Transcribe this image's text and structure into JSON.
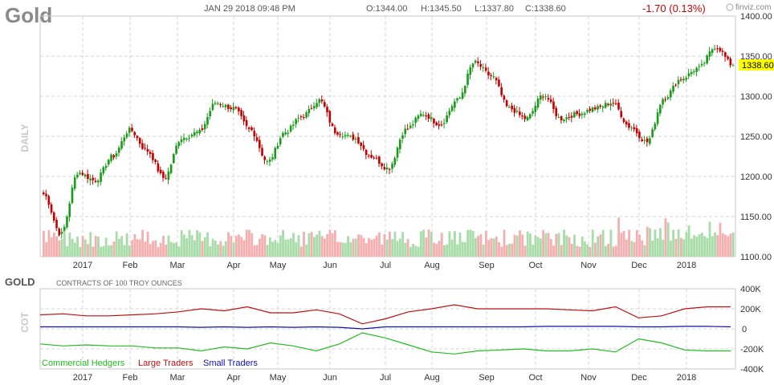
{
  "header": {
    "symbol": "Gold",
    "datetime": "JAN 29 2018 09:48 PM",
    "open": "O:1344.00",
    "high": "H:1345.50",
    "low": "L:1337.80",
    "close": "C:1338.60",
    "change": "-1.70 (0.13%)",
    "brand": "finviz.com",
    "change_color": "#cc0000"
  },
  "price_panel": {
    "label": "DAILY",
    "last_price": "1338.60",
    "last_price_bg": "#ffff00"
  },
  "cot_panel": {
    "symbol": "GOLD",
    "subtitle": "CONTRACTS OF 100 TROY OUNCES",
    "label": "COT"
  },
  "colors": {
    "up": "#1a9c1a",
    "down": "#c40000",
    "vol_up": "#a8dca8",
    "vol_down": "#f4b0b0",
    "grid": "#d4d4d4",
    "commercial": "#22bb22",
    "large": "#bb1111",
    "small": "#1111aa"
  },
  "chart_data": [
    {
      "type": "candlestick",
      "ylim": [
        1100,
        1400
      ],
      "yticks": [
        "1100.00",
        "1150.00",
        "1200.00",
        "1250.00",
        "1300.00",
        "1350.00",
        "1400.00"
      ],
      "x_labels": [
        "2017",
        "Feb",
        "Mar",
        "Apr",
        "May",
        "Jun",
        "Jul",
        "Aug",
        "Sep",
        "Oct",
        "Nov",
        "Dec",
        "2018"
      ],
      "anchors": [
        {
          "label": "start",
          "price": 1178
        },
        {
          "label": "early Jan",
          "price": 1128
        },
        {
          "label": "mid Jan",
          "price": 1205
        },
        {
          "label": "late Jan",
          "price": 1195
        },
        {
          "label": "Feb",
          "price": 1225
        },
        {
          "label": "late Feb",
          "price": 1258
        },
        {
          "label": "Mar",
          "price": 1232
        },
        {
          "label": "mid Mar",
          "price": 1198
        },
        {
          "label": "late Mar",
          "price": 1248
        },
        {
          "label": "early Apr",
          "price": 1255
        },
        {
          "label": "mid Apr",
          "price": 1292
        },
        {
          "label": "late Apr",
          "price": 1285
        },
        {
          "label": "early May",
          "price": 1258
        },
        {
          "label": "mid May",
          "price": 1218
        },
        {
          "label": "late May",
          "price": 1255
        },
        {
          "label": "early Jun",
          "price": 1275
        },
        {
          "label": "Jun",
          "price": 1295
        },
        {
          "label": "mid Jun",
          "price": 1255
        },
        {
          "label": "late Jun",
          "price": 1248
        },
        {
          "label": "Jul",
          "price": 1225
        },
        {
          "label": "mid Jul",
          "price": 1210
        },
        {
          "label": "late Jul",
          "price": 1258
        },
        {
          "label": "Aug",
          "price": 1278
        },
        {
          "label": "mid Aug",
          "price": 1265
        },
        {
          "label": "late Aug",
          "price": 1295
        },
        {
          "label": "Sep",
          "price": 1342
        },
        {
          "label": "mid Sep",
          "price": 1325
        },
        {
          "label": "late Sep",
          "price": 1285
        },
        {
          "label": "Oct",
          "price": 1272
        },
        {
          "label": "mid Oct",
          "price": 1302
        },
        {
          "label": "late Oct",
          "price": 1272
        },
        {
          "label": "Nov",
          "price": 1278
        },
        {
          "label": "mid Nov",
          "price": 1285
        },
        {
          "label": "late Nov",
          "price": 1292
        },
        {
          "label": "Dec",
          "price": 1262
        },
        {
          "label": "mid Dec",
          "price": 1243
        },
        {
          "label": "late Dec",
          "price": 1298
        },
        {
          "label": "early 2018",
          "price": 1322
        },
        {
          "label": "Jan 2018",
          "price": 1335
        },
        {
          "label": "late Jan 2018",
          "price": 1362
        },
        {
          "label": "last",
          "price": 1338.6
        }
      ]
    },
    {
      "type": "line",
      "ylim": [
        -400000,
        400000
      ],
      "yticks": [
        "400K",
        "200K",
        "0",
        "-200K",
        "-400K"
      ],
      "x_labels": [
        "2017",
        "Feb",
        "Mar",
        "Apr",
        "May",
        "Jun",
        "Jul",
        "Aug",
        "Sep",
        "Oct",
        "Nov",
        "Dec",
        "2018"
      ],
      "series": [
        {
          "name": "Commercial Hedgers",
          "values": [
            -150000,
            -170000,
            -160000,
            -170000,
            -170000,
            -190000,
            -190000,
            -220000,
            -180000,
            -200000,
            -140000,
            -170000,
            -220000,
            -150000,
            -40000,
            -90000,
            -160000,
            -230000,
            -250000,
            -220000,
            -210000,
            -200000,
            -220000,
            -220000,
            -200000,
            -230000,
            -100000,
            -140000,
            -210000,
            -220000,
            -220000
          ]
        },
        {
          "name": "Large Traders",
          "values": [
            140000,
            150000,
            130000,
            130000,
            140000,
            150000,
            170000,
            200000,
            180000,
            220000,
            160000,
            160000,
            190000,
            150000,
            50000,
            100000,
            170000,
            200000,
            240000,
            200000,
            200000,
            200000,
            200000,
            190000,
            180000,
            220000,
            110000,
            130000,
            200000,
            220000,
            220000
          ]
        },
        {
          "name": "Small Traders",
          "values": [
            20000,
            20000,
            20000,
            20000,
            20000,
            20000,
            20000,
            15000,
            20000,
            15000,
            20000,
            15000,
            20000,
            15000,
            0,
            20000,
            20000,
            20000,
            20000,
            20000,
            20000,
            20000,
            25000,
            25000,
            25000,
            25000,
            20000,
            20000,
            25000,
            25000,
            20000
          ]
        }
      ]
    }
  ]
}
